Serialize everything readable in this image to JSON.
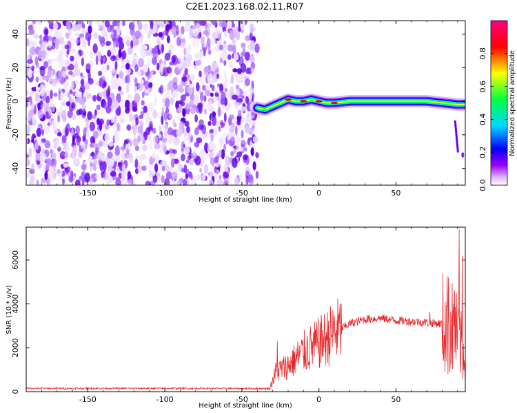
{
  "page_title": "C2E1.2023.168.02.11.R07",
  "chart_data": [
    {
      "type": "heatmap",
      "xlabel": "Height of straight line (km)",
      "ylabel": "Frequency (Hz)",
      "xlim": [
        -190,
        95
      ],
      "ylim": [
        -50,
        48
      ],
      "x_ticks": [
        -150,
        -100,
        -50,
        0,
        50
      ],
      "x_tick_labels": [
        "-150",
        "-100",
        "-50",
        "0",
        "50"
      ],
      "y_ticks": [
        -40,
        -20,
        0,
        20,
        40
      ],
      "y_tick_labels": [
        "-40",
        "-20",
        "0",
        "20",
        "40"
      ],
      "noise_region_x": [
        -190,
        -40
      ],
      "signal_track": [
        {
          "x": -40,
          "y": -4
        },
        {
          "x": -35,
          "y": -5
        },
        {
          "x": -30,
          "y": -3
        },
        {
          "x": -25,
          "y": -1
        },
        {
          "x": -20,
          "y": 1
        },
        {
          "x": -15,
          "y": 0
        },
        {
          "x": -10,
          "y": 0
        },
        {
          "x": -5,
          "y": 1
        },
        {
          "x": 0,
          "y": 0
        },
        {
          "x": 5,
          "y": -1
        },
        {
          "x": 10,
          "y": -1
        },
        {
          "x": 20,
          "y": 0
        },
        {
          "x": 30,
          "y": 0
        },
        {
          "x": 40,
          "y": 0
        },
        {
          "x": 50,
          "y": 0
        },
        {
          "x": 60,
          "y": 0
        },
        {
          "x": 70,
          "y": 0
        },
        {
          "x": 80,
          "y": -1
        },
        {
          "x": 90,
          "y": -2
        },
        {
          "x": 95,
          "y": -2
        }
      ],
      "colorbar": {
        "label": "Normalized spectral amplitude",
        "range": [
          0,
          1
        ],
        "ticks": [
          0.0,
          0.2,
          0.4,
          0.6,
          0.8
        ],
        "tick_labels": [
          "0.0",
          "0.2",
          "0.4",
          "0.6",
          "0.8"
        ],
        "colors": [
          "#ffffff",
          "#a000ff",
          "#0000ff",
          "#00d8ff",
          "#00ff40",
          "#ffff00",
          "#ff0000",
          "#ff0080"
        ]
      }
    },
    {
      "type": "line",
      "xlabel": "Height of straight line (km)",
      "ylabel": "SNR (10 * v/v)",
      "xlim": [
        -190,
        95
      ],
      "ylim": [
        0,
        7500
      ],
      "x_ticks": [
        -150,
        -100,
        -50,
        0,
        50
      ],
      "x_tick_labels": [
        "-150",
        "-100",
        "-50",
        "0",
        "50"
      ],
      "y_ticks": [
        0,
        2000,
        4000,
        6000
      ],
      "y_tick_labels": [
        "0",
        "2000",
        "4000",
        "6000"
      ],
      "color": "#e8262a",
      "trend": [
        {
          "x": -190,
          "y": 150
        },
        {
          "x": -100,
          "y": 150
        },
        {
          "x": -32,
          "y": 140
        },
        {
          "x": -28,
          "y": 900
        },
        {
          "x": -20,
          "y": 1200
        },
        {
          "x": -10,
          "y": 1800
        },
        {
          "x": 0,
          "y": 2200
        },
        {
          "x": 10,
          "y": 2700
        },
        {
          "x": 20,
          "y": 3100
        },
        {
          "x": 30,
          "y": 3300
        },
        {
          "x": 40,
          "y": 3350
        },
        {
          "x": 50,
          "y": 3250
        },
        {
          "x": 60,
          "y": 3200
        },
        {
          "x": 70,
          "y": 3150
        },
        {
          "x": 80,
          "y": 3100
        },
        {
          "x": 85,
          "y": 3000
        },
        {
          "x": 90,
          "y": 2500
        },
        {
          "x": 95,
          "y": 1500
        }
      ],
      "peaks": [
        {
          "x": -27,
          "y": 2300
        },
        {
          "x": 72,
          "y": 3650
        },
        {
          "x": 84,
          "y": 5200
        },
        {
          "x": 88,
          "y": 4600
        },
        {
          "x": 91,
          "y": 7400
        },
        {
          "x": 93,
          "y": 6200
        }
      ]
    }
  ]
}
